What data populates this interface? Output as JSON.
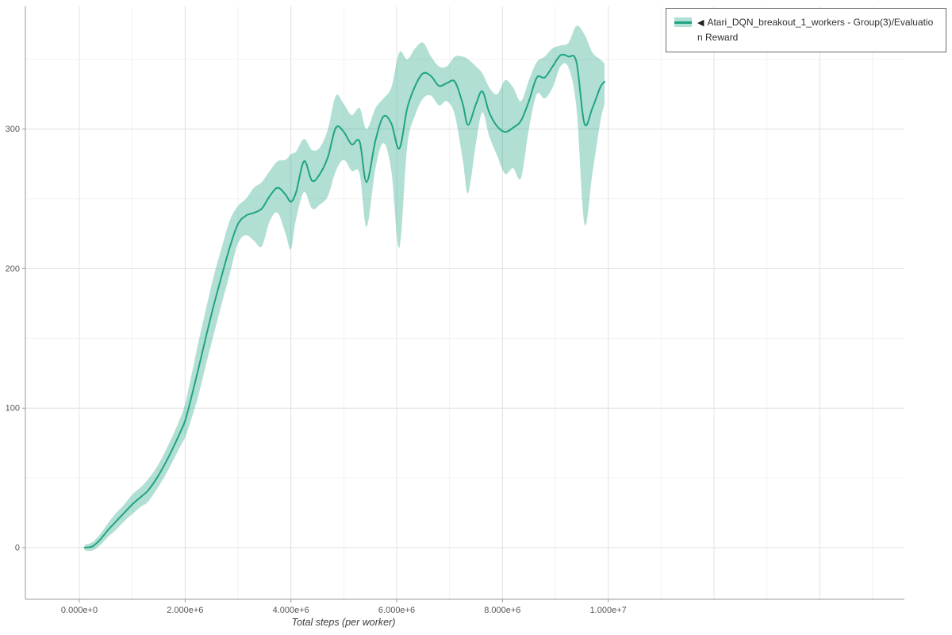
{
  "legend": {
    "collapse_icon": "◀",
    "series_label": "Atari_DQN_breakout_1_workers - Group(3)/Evaluation Reward"
  },
  "chart_data": {
    "type": "line",
    "title": "",
    "xlabel": "Total steps (per worker)",
    "ylabel": "",
    "legend_position": "top-right",
    "grid": true,
    "xlim": [
      -1020000,
      15600000
    ],
    "ylim": [
      -37,
      388
    ],
    "x_ticks": {
      "values": [
        0,
        2000000,
        4000000,
        6000000,
        8000000,
        10000000
      ],
      "labels": [
        "0.000e+0",
        "2.000e+6",
        "4.000e+6",
        "6.000e+6",
        "8.000e+6",
        "1.000e+7"
      ]
    },
    "y_ticks": {
      "values": [
        0,
        100,
        200,
        300
      ],
      "labels": [
        "0",
        "100",
        "200",
        "300"
      ]
    },
    "minor_grid": {
      "x_step": 1000000,
      "y_step": 50
    },
    "major_grid": {
      "x_step": 2000000,
      "y_step": 100
    },
    "colors": {
      "grid_major": "#e3e3e3",
      "grid_minor": "#f2f2f2",
      "spine": "#999999",
      "tick_label": "#555555"
    },
    "series": [
      {
        "name": "Atari_DQN_breakout_1_workers - Group(3)/Evaluation Reward",
        "line_color": "#1fa484",
        "band_opacity": 0.35,
        "x": [
          100000,
          250000,
          400000,
          550000,
          700000,
          850000,
          1000000,
          1150000,
          1300000,
          1500000,
          1700000,
          1900000,
          2000000,
          2100000,
          2250000,
          2400000,
          2550000,
          2700000,
          2850000,
          3000000,
          3150000,
          3300000,
          3450000,
          3600000,
          3750000,
          3900000,
          4000000,
          4100000,
          4250000,
          4400000,
          4550000,
          4700000,
          4850000,
          5000000,
          5150000,
          5300000,
          5430000,
          5600000,
          5750000,
          5900000,
          6050000,
          6200000,
          6350000,
          6500000,
          6650000,
          6800000,
          6950000,
          7100000,
          7250000,
          7350000,
          7500000,
          7620000,
          7750000,
          7900000,
          8050000,
          8200000,
          8350000,
          8500000,
          8650000,
          8800000,
          8950000,
          9100000,
          9250000,
          9400000,
          9550000,
          9700000,
          9850000,
          9930000
        ],
        "mean": [
          0,
          1,
          6,
          13,
          19,
          25,
          31,
          36,
          41,
          52,
          66,
          82,
          91,
          105,
          128,
          152,
          175,
          196,
          216,
          232,
          238,
          240,
          243,
          252,
          258,
          253,
          248,
          255,
          277,
          263,
          268,
          280,
          301,
          298,
          289,
          291,
          262,
          292,
          309,
          304,
          286,
          315,
          331,
          340,
          338,
          331,
          333,
          334,
          318,
          303,
          318,
          327,
          312,
          302,
          298,
          301,
          306,
          320,
          337,
          337,
          345,
          353,
          352,
          348,
          304,
          315,
          330,
          334
        ],
        "upper": [
          2,
          4,
          10,
          18,
          25,
          31,
          38,
          43,
          49,
          60,
          75,
          92,
          103,
          120,
          147,
          172,
          196,
          216,
          235,
          245,
          250,
          258,
          262,
          270,
          277,
          278,
          282,
          284,
          293,
          285,
          287,
          300,
          324,
          318,
          310,
          315,
          300,
          315,
          322,
          330,
          355,
          350,
          358,
          362,
          352,
          345,
          345,
          352,
          352,
          350,
          345,
          340,
          330,
          325,
          335,
          330,
          320,
          335,
          348,
          352,
          358,
          360,
          362,
          374,
          368,
          355,
          350,
          347
        ],
        "lower": [
          -2,
          -2,
          2,
          8,
          13,
          19,
          24,
          29,
          33,
          44,
          57,
          72,
          79,
          90,
          109,
          132,
          154,
          176,
          197,
          218,
          224,
          220,
          216,
          234,
          240,
          225,
          214,
          236,
          255,
          243,
          246,
          252,
          270,
          278,
          270,
          268,
          230,
          272,
          290,
          270,
          215,
          288,
          310,
          322,
          324,
          317,
          320,
          310,
          278,
          254,
          290,
          312,
          295,
          281,
          268,
          272,
          265,
          300,
          325,
          322,
          330,
          345,
          344,
          315,
          232,
          268,
          305,
          318
        ]
      }
    ]
  }
}
